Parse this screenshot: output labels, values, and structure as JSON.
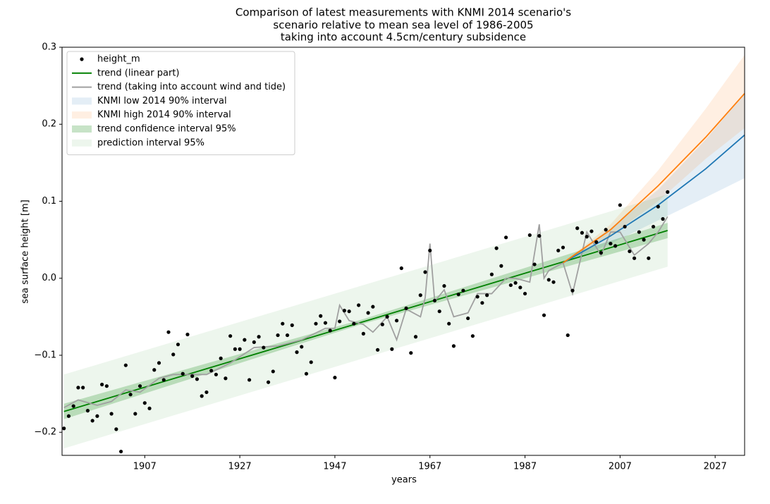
{
  "chart_data": {
    "type": "line",
    "title": "Comparison of latest measurements with KNMI 2014 scenario's",
    "subtitle": [
      "scenario relative to mean sea level of 1986-2005",
      "taking into account 4.5cm/century subsidence"
    ],
    "x_label": "years",
    "y_label": "sea surface height [m]",
    "xlim": [
      1889.6,
      2033.2
    ],
    "ylim": [
      -0.23,
      0.3
    ],
    "xticks": [
      1907,
      1927,
      1947,
      1967,
      1987,
      2007,
      2027
    ],
    "yticks": [
      {
        "value": -0.2,
        "label": "−0.2"
      },
      {
        "value": -0.1,
        "label": "−0.1"
      },
      {
        "value": 0,
        "label": "0.0"
      },
      0.1,
      0.2,
      0.3
    ],
    "legend": "upper left",
    "series": [
      {
        "name": "height_m",
        "kind": "scatter",
        "color": "#000000",
        "x": [
          1890,
          1891,
          1892,
          1893,
          1894,
          1895,
          1896,
          1897,
          1898,
          1899,
          1900,
          1901,
          1902,
          1903,
          1904,
          1905,
          1906,
          1907,
          1908,
          1909,
          1910,
          1911,
          1912,
          1913,
          1914,
          1915,
          1916,
          1917,
          1918,
          1919,
          1920,
          1921,
          1922,
          1923,
          1924,
          1925,
          1926,
          1927,
          1928,
          1929,
          1930,
          1931,
          1932,
          1933,
          1934,
          1935,
          1936,
          1937,
          1938,
          1939,
          1940,
          1941,
          1942,
          1943,
          1944,
          1945,
          1946,
          1947,
          1948,
          1949,
          1950,
          1951,
          1952,
          1953,
          1954,
          1955,
          1956,
          1957,
          1958,
          1959,
          1960,
          1961,
          1962,
          1963,
          1964,
          1965,
          1966,
          1967,
          1968,
          1969,
          1970,
          1971,
          1972,
          1973,
          1974,
          1975,
          1976,
          1977,
          1978,
          1979,
          1980,
          1981,
          1982,
          1983,
          1984,
          1985,
          1986,
          1987,
          1988,
          1989,
          1990,
          1991,
          1992,
          1993,
          1994,
          1995,
          1996,
          1997,
          1998,
          1999,
          2000,
          2001,
          2002,
          2003,
          2004,
          2005,
          2006,
          2007,
          2008,
          2009,
          2010,
          2011,
          2012,
          2013,
          2014,
          2015,
          2016,
          2017
        ],
        "values": [
          -0.195,
          -0.179,
          -0.166,
          -0.142,
          -0.142,
          -0.172,
          -0.185,
          -0.179,
          -0.138,
          -0.14,
          -0.176,
          -0.196,
          -0.225,
          -0.113,
          -0.151,
          -0.176,
          -0.14,
          -0.162,
          -0.169,
          -0.119,
          -0.11,
          -0.132,
          -0.07,
          -0.099,
          -0.086,
          -0.124,
          -0.073,
          -0.127,
          -0.131,
          -0.153,
          -0.148,
          -0.12,
          -0.125,
          -0.104,
          -0.13,
          -0.075,
          -0.092,
          -0.092,
          -0.08,
          -0.132,
          -0.083,
          -0.076,
          -0.09,
          -0.135,
          -0.121,
          -0.074,
          -0.059,
          -0.074,
          -0.061,
          -0.096,
          -0.089,
          -0.124,
          -0.109,
          -0.059,
          -0.049,
          -0.058,
          -0.068,
          -0.129,
          -0.056,
          -0.042,
          -0.043,
          -0.059,
          -0.035,
          -0.072,
          -0.045,
          -0.037,
          -0.093,
          -0.06,
          -0.05,
          -0.092,
          -0.055,
          0.013,
          -0.039,
          -0.097,
          -0.076,
          -0.022,
          0.008,
          0.036,
          -0.029,
          -0.043,
          -0.01,
          -0.059,
          -0.088,
          -0.021,
          -0.016,
          -0.052,
          -0.075,
          -0.024,
          -0.032,
          -0.022,
          0.005,
          0.039,
          0.016,
          0.053,
          -0.009,
          -0.006,
          -0.012,
          -0.02,
          0.056,
          0.018,
          0.055,
          -0.048,
          -0.002,
          -0.005,
          0.036,
          0.04,
          -0.074,
          -0.016,
          0.065,
          0.059,
          0.054,
          0.061,
          0.047,
          0.033,
          0.063,
          0.045,
          0.042,
          0.095,
          0.067,
          0.035,
          0.026,
          0.06,
          0.05,
          0.026,
          0.067,
          0.093,
          0.077,
          0.112
        ]
      },
      {
        "name": "trend (linear part)",
        "kind": "line",
        "color": "#008000",
        "x": [
          1890,
          2017
        ],
        "values": [
          -0.173,
          0.062
        ]
      },
      {
        "name": "trend (taking into account wind and tide)",
        "kind": "line",
        "color": "#a0a0a0",
        "x": [
          1890,
          1893,
          1897,
          1900,
          1903,
          1906,
          1910,
          1913,
          1916,
          1920,
          1925,
          1930,
          1935,
          1940,
          1945,
          1947,
          1948,
          1950,
          1953,
          1955,
          1958,
          1960,
          1962,
          1965,
          1966,
          1967,
          1968,
          1970,
          1972,
          1975,
          1977,
          1980,
          1983,
          1985,
          1988,
          1990,
          1991,
          1992,
          1995,
          1997,
          2000,
          2003,
          2005,
          2007,
          2010,
          2013,
          2015,
          2017
        ],
        "values": [
          -0.168,
          -0.158,
          -0.165,
          -0.16,
          -0.145,
          -0.148,
          -0.13,
          -0.125,
          -0.125,
          -0.125,
          -0.11,
          -0.09,
          -0.088,
          -0.08,
          -0.065,
          -0.065,
          -0.035,
          -0.055,
          -0.06,
          -0.07,
          -0.05,
          -0.08,
          -0.04,
          -0.05,
          -0.025,
          0.045,
          -0.03,
          -0.015,
          -0.05,
          -0.045,
          -0.02,
          -0.02,
          0,
          0,
          -0.005,
          0.07,
          0,
          0.01,
          0.02,
          -0.02,
          0.06,
          0.03,
          0.06,
          0.06,
          0.03,
          0.045,
          0.06,
          0.08
        ]
      },
      {
        "name": "KNMI low 2014 90% interval",
        "kind": "band",
        "color": "#1f77b4",
        "alpha": 0.12,
        "x": [
          1995,
          2005,
          2015,
          2025,
          2033.2
        ],
        "values": [
          0.02,
          0.055,
          0.095,
          0.142,
          0.186
        ],
        "lower": [
          0.02,
          0.045,
          0.075,
          0.105,
          0.13
        ],
        "upper": [
          0.02,
          0.065,
          0.115,
          0.18,
          0.24
        ]
      },
      {
        "name": "KNMI high 2014 90% interval",
        "kind": "band",
        "color": "#ff7f0e",
        "alpha": 0.12,
        "x": [
          1995,
          2005,
          2015,
          2025,
          2033.2
        ],
        "values": [
          0.02,
          0.063,
          0.12,
          0.183,
          0.24
        ],
        "lower": [
          0.02,
          0.055,
          0.1,
          0.155,
          0.195
        ],
        "upper": [
          0.02,
          0.07,
          0.14,
          0.22,
          0.29
        ]
      },
      {
        "name": "trend confidence interval 95%",
        "kind": "band",
        "color": "#008000",
        "alpha": 0.22,
        "x": [
          1890,
          1953,
          2017
        ],
        "lower": [
          -0.183,
          -0.059,
          0.052
        ],
        "upper": [
          -0.163,
          -0.053,
          0.072
        ]
      },
      {
        "name": "prediction interval 95%",
        "kind": "band",
        "color": "#008000",
        "alpha": 0.07,
        "x": [
          1890,
          2017
        ],
        "lower": [
          -0.221,
          0.015
        ],
        "upper": [
          -0.125,
          0.109
        ]
      }
    ]
  }
}
